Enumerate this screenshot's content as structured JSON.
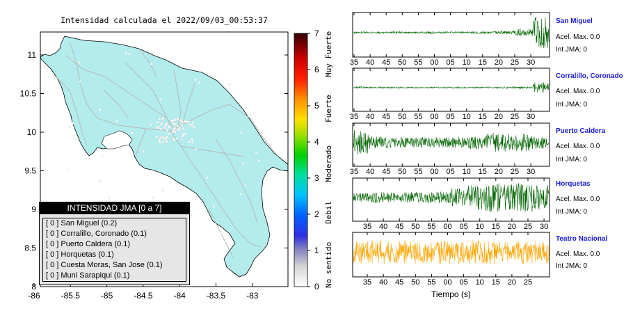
{
  "map": {
    "title": "Intensidad calculada el 2022/09/03_00:53:37",
    "x_ticks": [
      "-86",
      "-85.5",
      "-85",
      "-84.5",
      "-84",
      "-83.5",
      "-83"
    ],
    "y_ticks": [
      "11",
      "10.5",
      "10",
      "9.5",
      "9",
      "8.5",
      "8"
    ],
    "land_color": "#b3ecec",
    "road_color": "#b8b8b8"
  },
  "legend": {
    "title": "INTENSIDAD JMA [0 a 7]",
    "items": [
      "[ 0 ]  San Miguel (0.2)",
      "[ 0 ]  Corralillo, Coronado (0.1)",
      "[ 0 ]  Puerto Caldera (0.1)",
      "[ 0 ]  Horquetas (0.1)",
      "[ 0 ]  Cuesta Moras, San Jose (0.1)",
      "[ 0 ]  Muni Sarapiqui (0.1)"
    ]
  },
  "colorbar": {
    "ticks": [
      "0",
      "1",
      "2",
      "3",
      "4",
      "5",
      "6",
      "7"
    ],
    "labels": [
      "No sentido",
      "Debil",
      "Moderado",
      "Fuerte",
      "Muy Fuerte"
    ]
  },
  "xlabel": "Tiempo (s)",
  "chart_data": [
    {
      "type": "map",
      "title": "Intensidad calculada el 2022/09/03_00:53:37",
      "xlim": [
        -86,
        -82.6
      ],
      "ylim": [
        8,
        11.3
      ],
      "stations": [
        {
          "name": "San Miguel",
          "jma": 0,
          "value": 0.2
        },
        {
          "name": "Corralillo, Coronado",
          "jma": 0,
          "value": 0.1
        },
        {
          "name": "Puerto Caldera",
          "jma": 0,
          "value": 0.1
        },
        {
          "name": "Horquetas",
          "jma": 0,
          "value": 0.1
        },
        {
          "name": "Cuesta Moras, San Jose",
          "jma": 0,
          "value": 0.1
        },
        {
          "name": "Muni Sarapiqui",
          "jma": 0,
          "value": 0.1
        }
      ]
    },
    {
      "type": "line",
      "station": "San Miguel",
      "accel_label": "Acel. Max. 0.0",
      "jma_label": "Int JMA: 0",
      "color": "#006400",
      "x_ticks": [
        "35",
        "40",
        "45",
        "50",
        "55",
        "00",
        "05",
        "10",
        "15",
        "20",
        "25",
        "30"
      ],
      "x_start": 34,
      "amp_profile": [
        0.05,
        0.05,
        0.06,
        0.05,
        0.06,
        0.05,
        0.05,
        0.06,
        0.07,
        0.1,
        0.2,
        0.9
      ]
    },
    {
      "type": "line",
      "station": "Corralillo, Coronado",
      "accel_label": "Acel. Max. 0.0",
      "jma_label": "Int JMA: 0",
      "color": "#006400",
      "x_ticks": [
        "35",
        "40",
        "45",
        "50",
        "55",
        "00",
        "05",
        "10",
        "15",
        "20",
        "25",
        "30"
      ],
      "x_start": 34,
      "amp_profile": [
        0.05,
        0.04,
        0.04,
        0.04,
        0.04,
        0.04,
        0.04,
        0.04,
        0.04,
        0.05,
        0.05,
        0.3
      ]
    },
    {
      "type": "line",
      "station": "Puerto Caldera",
      "accel_label": "Acel. Max. 0.0",
      "jma_label": "Int JMA: 0",
      "color": "#006400",
      "x_ticks": [
        "35",
        "40",
        "45",
        "50",
        "55",
        "00",
        "05",
        "10",
        "15",
        "20",
        "25",
        "30"
      ],
      "x_start": 34,
      "amp_profile": [
        0.7,
        0.35,
        0.3,
        0.28,
        0.3,
        0.3,
        0.32,
        0.35,
        0.55,
        0.5,
        0.55,
        0.35
      ]
    },
    {
      "type": "line",
      "station": "Horquetas",
      "accel_label": "Acel. Max. 0.0",
      "jma_label": "Int JMA: 0",
      "color": "#006400",
      "x_ticks": [
        "35",
        "40",
        "45",
        "50",
        "55",
        "00",
        "05",
        "10",
        "15",
        "20",
        "25",
        "30"
      ],
      "x_start": 31,
      "amp_profile": [
        0.25,
        0.3,
        0.28,
        0.3,
        0.3,
        0.35,
        0.5,
        0.7,
        0.8,
        0.75,
        0.8,
        0.7
      ]
    },
    {
      "type": "line",
      "station": "Teatro Nacional",
      "accel_label": "Acel. Max. 0.0",
      "jma_label": "Int JMA: 0",
      "color": "#ffa500",
      "x_ticks": [
        "35",
        "40",
        "45",
        "50",
        "55",
        "00",
        "05",
        "10",
        "15",
        "20",
        "25"
      ],
      "x_start": 31,
      "amp_profile": [
        0.6,
        0.65,
        0.6,
        0.65,
        0.6,
        0.65,
        0.6,
        0.7,
        0.65,
        0.6,
        0.65,
        0.6
      ]
    }
  ]
}
